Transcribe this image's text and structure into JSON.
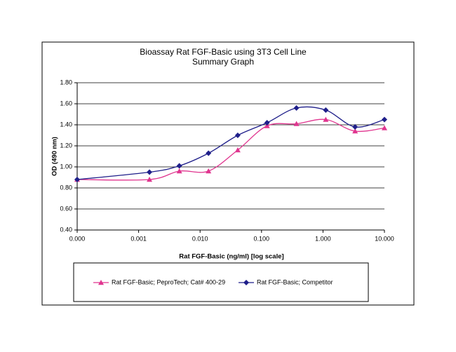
{
  "chart_data": {
    "type": "line",
    "title": "Bioassay Rat FGF-Basic using 3T3 Cell Line",
    "subtitle": "Summary Graph",
    "x_label": "Rat FGF-Basic (ng/ml) [log scale]",
    "y_label": "OD (490 nm)",
    "x": [
      0.0001,
      0.0015,
      0.0046,
      0.0137,
      0.041,
      0.123,
      0.37,
      1.11,
      3.33,
      10
    ],
    "series": [
      {
        "name": "Rat FGF-Basic; PeproTech; Cat# 400-29",
        "color": "#e0358f",
        "marker": "triangle",
        "values": [
          0.88,
          0.88,
          0.96,
          0.96,
          1.16,
          1.39,
          1.41,
          1.45,
          1.34,
          1.37
        ]
      },
      {
        "name": "Rat FGF-Basic; Competitor",
        "color": "#1f1f8a",
        "marker": "diamond",
        "values": [
          0.88,
          0.95,
          1.01,
          1.13,
          1.3,
          1.42,
          1.56,
          1.54,
          1.38,
          1.45
        ]
      }
    ],
    "xscale": "log",
    "xlim": [
      0.0001,
      10
    ],
    "xticks": [
      {
        "value": 0.0001,
        "label": "0.000"
      },
      {
        "value": 0.001,
        "label": "0.001"
      },
      {
        "value": 0.01,
        "label": "0.010"
      },
      {
        "value": 0.1,
        "label": "0.100"
      },
      {
        "value": 1,
        "label": "1.000"
      },
      {
        "value": 10,
        "label": "10.000"
      }
    ],
    "ylim": [
      0.4,
      1.8
    ],
    "yticks": [
      {
        "value": 0.4,
        "label": "0.40"
      },
      {
        "value": 0.6,
        "label": "0.60"
      },
      {
        "value": 0.8,
        "label": "0.80"
      },
      {
        "value": 1.0,
        "label": "1.00"
      },
      {
        "value": 1.2,
        "label": "1.20"
      },
      {
        "value": 1.4,
        "label": "1.40"
      },
      {
        "value": 1.6,
        "label": "1.60"
      },
      {
        "value": 1.8,
        "label": "1.80"
      }
    ],
    "grid": true,
    "legend": "bottom"
  }
}
